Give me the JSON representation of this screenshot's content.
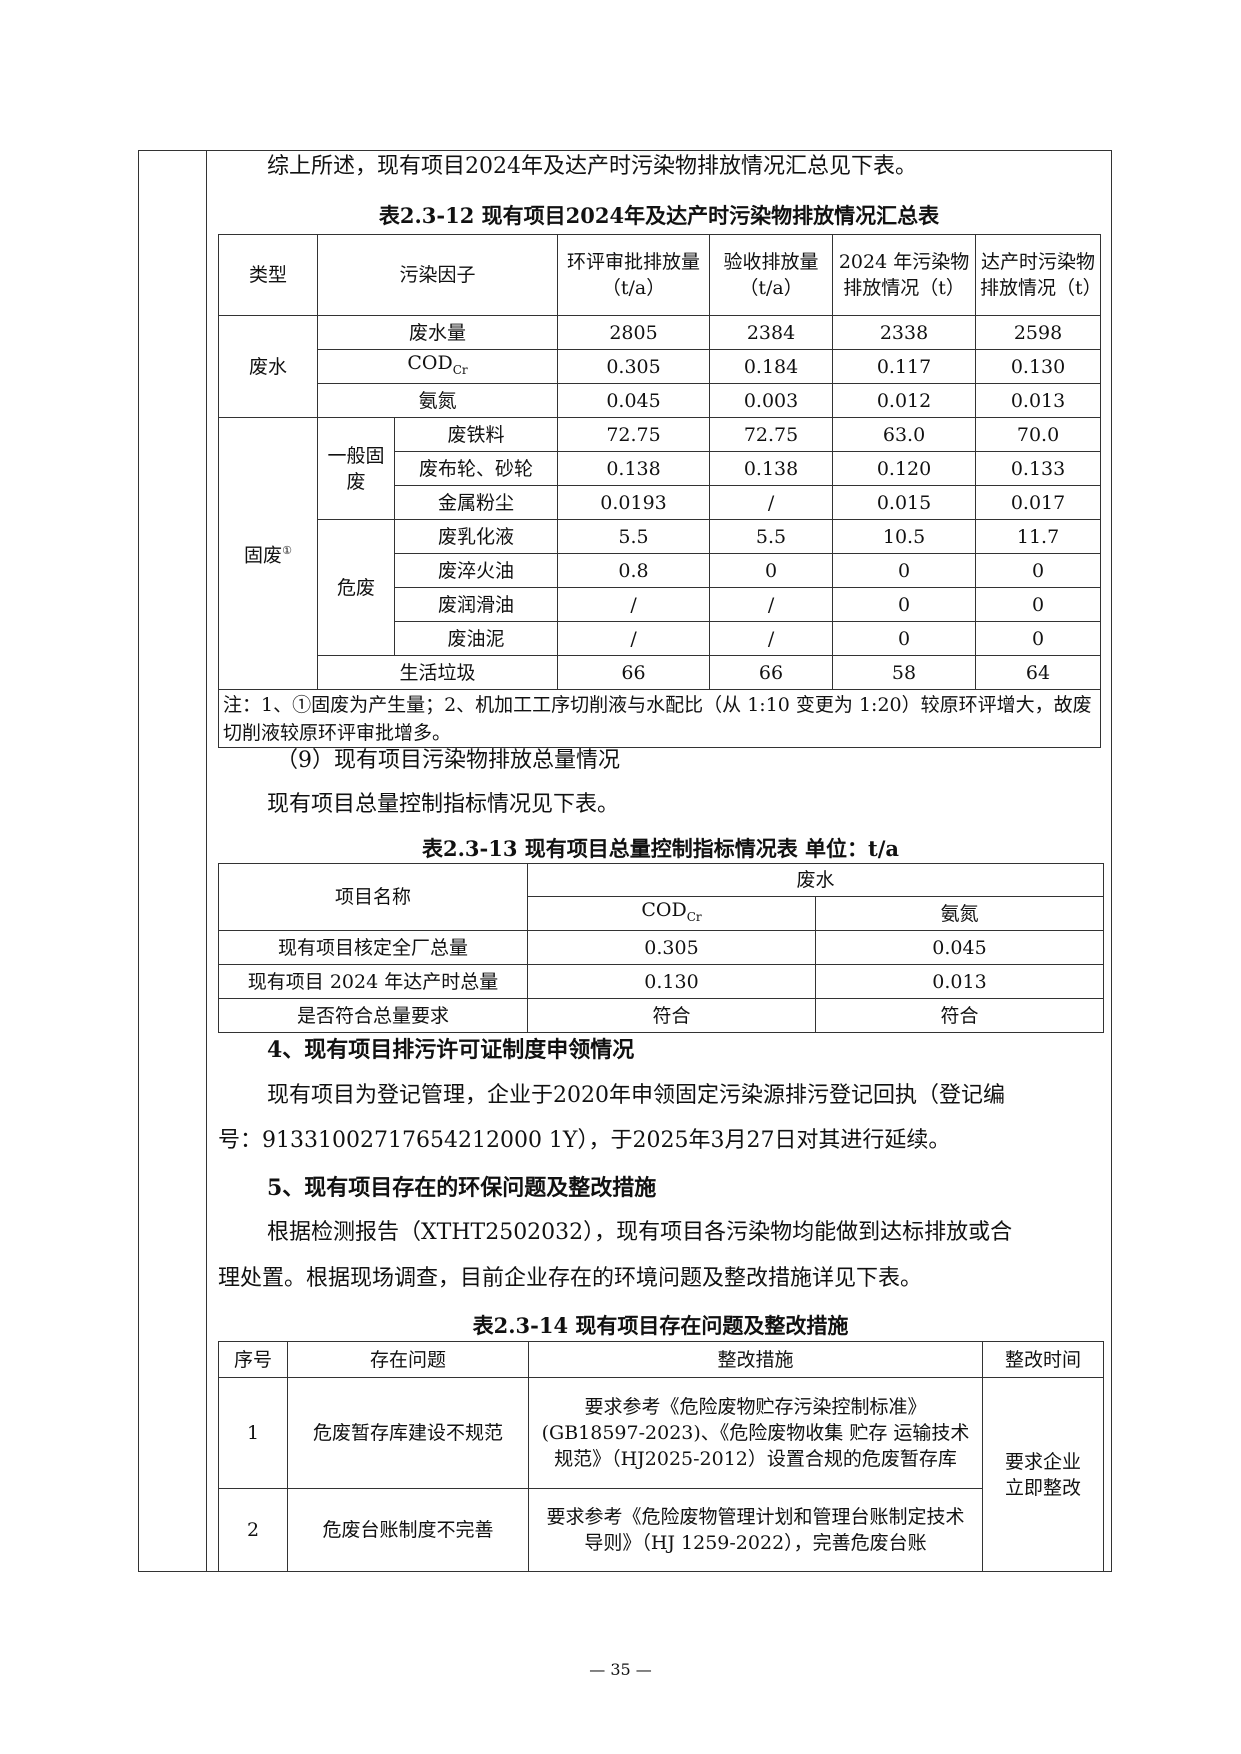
{
  "intro": "综上所述，现有项目2024年及达产时污染物排放情况汇总见下表。",
  "table1": {
    "title": "表2.3-12  现有项目2024年及达产时污染物排放情况汇总表",
    "headers": [
      "类型",
      "污染因子",
      "环评审批排放量（t/a）",
      "验收排放量（t/a）",
      "2024 年污染物排放情况（t）",
      "达产时污染物排放情况（t）"
    ],
    "wastewater": {
      "label": "废水",
      "rows": [
        {
          "factor": "废水量",
          "v": [
            "2805",
            "2384",
            "2338",
            "2598"
          ]
        },
        {
          "factor": "COD",
          "sub": "Cr",
          "v": [
            "0.305",
            "0.184",
            "0.117",
            "0.130"
          ]
        },
        {
          "factor": "氨氮",
          "v": [
            "0.045",
            "0.003",
            "0.012",
            "0.013"
          ]
        }
      ]
    },
    "solid": {
      "label": "固废",
      "mark": "①",
      "general": {
        "label": "一般固废",
        "rows": [
          {
            "factor": "废铁料",
            "v": [
              "72.75",
              "72.75",
              "63.0",
              "70.0"
            ]
          },
          {
            "factor": "废布轮、砂轮",
            "v": [
              "0.138",
              "0.138",
              "0.120",
              "0.133"
            ]
          },
          {
            "factor": "金属粉尘",
            "v": [
              "0.0193",
              "/",
              "0.015",
              "0.017"
            ]
          }
        ]
      },
      "hazardous": {
        "label": "危废",
        "rows": [
          {
            "factor": "废乳化液",
            "v": [
              "5.5",
              "5.5",
              "10.5",
              "11.7"
            ]
          },
          {
            "factor": "废淬火油",
            "v": [
              "0.8",
              "0",
              "0",
              "0"
            ]
          },
          {
            "factor": "废润滑油",
            "v": [
              "/",
              "/",
              "0",
              "0"
            ]
          },
          {
            "factor": "废油泥",
            "v": [
              "/",
              "/",
              "0",
              "0"
            ]
          }
        ]
      },
      "domestic": {
        "factor": "生活垃圾",
        "v": [
          "66",
          "66",
          "58",
          "64"
        ]
      }
    },
    "note": "注：1、①固废为产生量；2、机加工工序切削液与水配比（从 1:10 变更为 1:20）较原环评增大，故废切削液较原环评审批增多。"
  },
  "sec9": "（9）现有项目污染物排放总量情况",
  "sec9_text": "现有项目总量控制指标情况见下表。",
  "table2": {
    "title": "表2.3-13    现有项目总量控制指标情况表  单位：t/a",
    "h_name": "项目名称",
    "h_group": "废水",
    "h_cod": "COD",
    "h_cod_sub": "Cr",
    "h_nh": "氨氮",
    "rows": [
      {
        "name": "现有项目核定全厂总量",
        "cod": "0.305",
        "nh": "0.045"
      },
      {
        "name": "现有项目 2024 年达产时总量",
        "cod": "0.130",
        "nh": "0.013"
      },
      {
        "name": "是否符合总量要求",
        "cod": "符合",
        "nh": "符合"
      }
    ]
  },
  "h4": "4、现有项目排污许可证制度申领情况",
  "p4_1": "现有项目为登记管理，企业于2020年申领固定污染源排污登记回执（登记编",
  "p4_2": "号：91331002717654212000 1Y），于2025年3月27日对其进行延续。",
  "h5": "5、现有项目存在的环保问题及整改措施",
  "p5_1": "根据检测报告（XTHT2502032），现有项目各污染物均能做到达标排放或合",
  "p5_2": "理处置。根据现场调查，目前企业存在的环境问题及整改措施详见下表。",
  "table3": {
    "title": "表2.3-14    现有项目存在问题及整改措施",
    "headers": [
      "序号",
      "存在问题",
      "整改措施",
      "整改时间"
    ],
    "rows": [
      {
        "no": "1",
        "issue": "危废暂存库建设不规范",
        "measure": "要求参考《危险废物贮存污染控制标准》(GB18597-2023)、《危险废物收集 贮存 运输技术规范》（HJ2025-2012）设置合规的危废暂存库"
      },
      {
        "no": "2",
        "issue": "危废台账制度不完善",
        "measure": "要求参考《危险废物管理计划和管理台账制定技术导则》（HJ 1259-2022），完善危废台账"
      }
    ],
    "time": "要求企业 立即整改"
  },
  "page_number": "— 35 —"
}
